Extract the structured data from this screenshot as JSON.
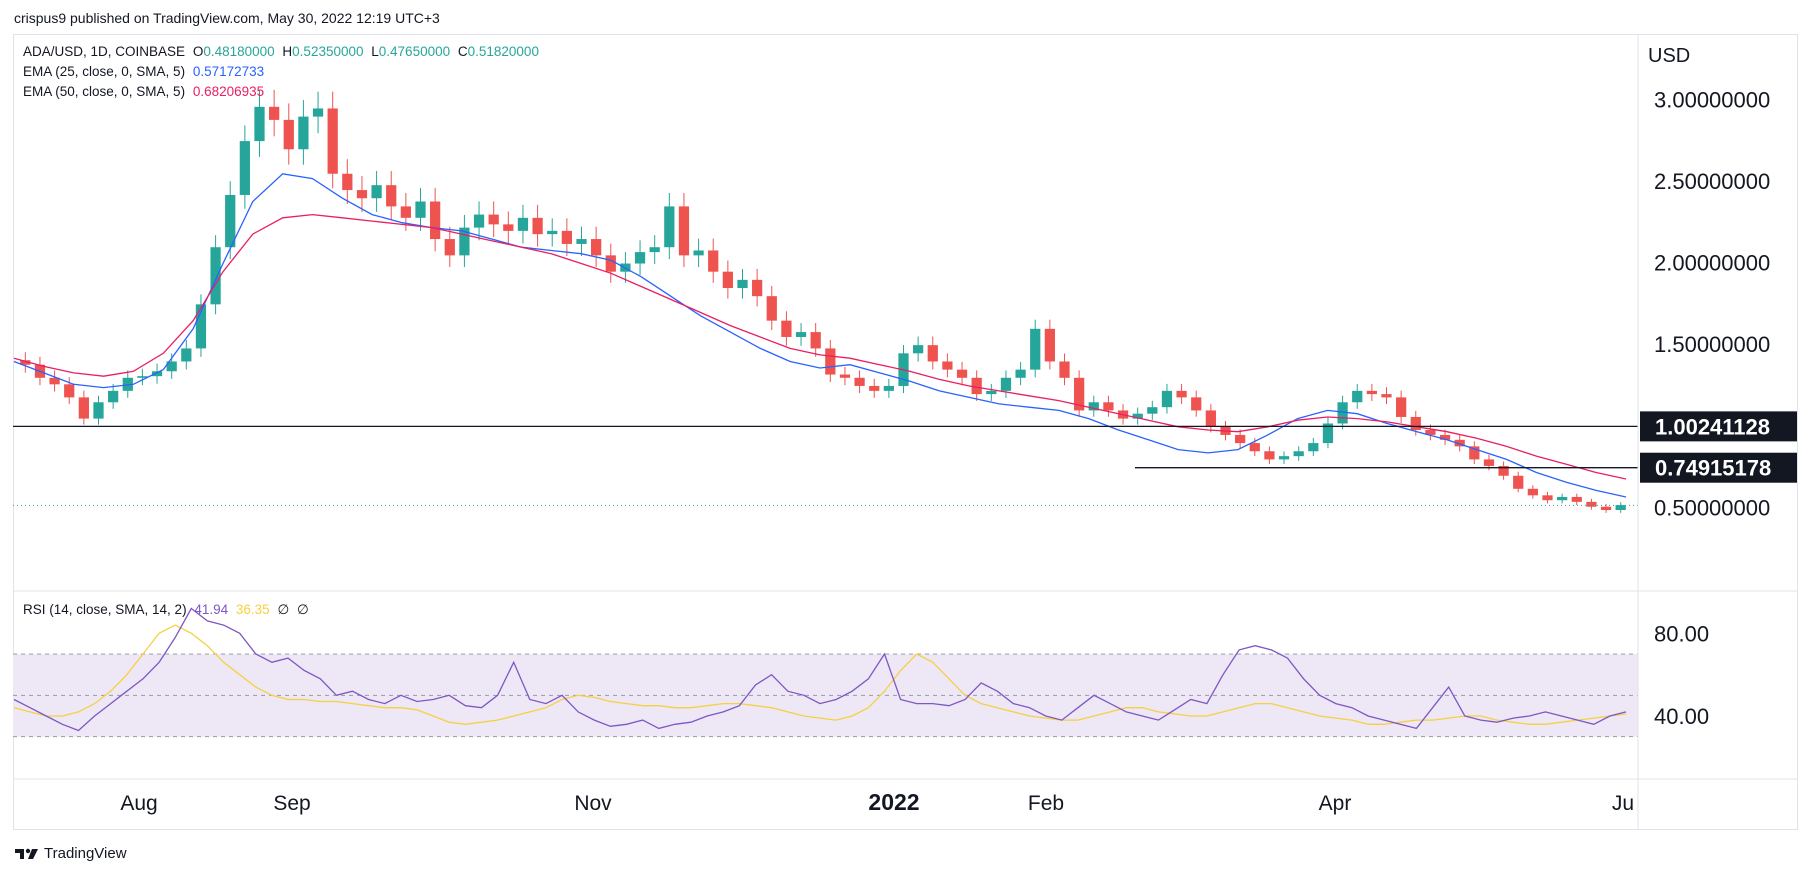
{
  "header": {
    "text": "crispus9 published on TradingView.com, May 30, 2022 12:19 UTC+3"
  },
  "legend": {
    "symbol": "ADA/USD, 1D, COINBASE",
    "o_label": "O",
    "o_value": "0.48180000",
    "h_label": "H",
    "h_value": "0.52350000",
    "l_label": "L",
    "l_value": "0.47650000",
    "c_label": "C",
    "c_value": "0.51820000",
    "ema25_label": "EMA (25, close, 0, SMA, 5)",
    "ema25_value": "0.57172733",
    "ema50_label": "EMA (50, close, 0, SMA, 5)",
    "ema50_value": "0.68206935"
  },
  "rsi_legend": {
    "label": "RSI (14, close, SMA, 14, 2)",
    "rsi_value": "41.94",
    "sma_value": "36.35",
    "n1": "∅",
    "n2": "∅"
  },
  "footer": {
    "brand": "TradingView"
  },
  "colors": {
    "up": "#26a69a",
    "down": "#ef5350",
    "ema25": "#2962ff",
    "ema50": "#e91e63",
    "rsi": "#7e57c2",
    "rsi_sma": "#f5d142",
    "rsi_band": "#ede7f6",
    "last_price": "#26a69a"
  },
  "chart_data": [
    {
      "type": "candlestick",
      "symbol": "ADA/USD",
      "currency_label": "USD",
      "x_labels": [
        "Aug",
        "Sep",
        "Nov",
        "2022",
        "Feb",
        "Apr",
        "Ju"
      ],
      "y_ticks": [
        "3.00000000",
        "2.50000000",
        "2.00000000",
        "1.50000000",
        "0.50000000"
      ],
      "ylim": [
        0.0,
        3.4
      ],
      "horizontal_levels": [
        {
          "label": "1.00241128",
          "value": 1.00241128
        },
        {
          "label": "0.74915178",
          "value": 0.74915178
        }
      ],
      "last_price": 0.5182,
      "series": [
        {
          "name": "ADA/USD",
          "values": [
            1.38,
            1.3,
            1.26,
            1.18,
            1.05,
            1.15,
            1.22,
            1.3,
            1.31,
            1.34,
            1.4,
            1.48,
            1.75,
            2.1,
            2.42,
            2.75,
            2.96,
            2.88,
            2.7,
            2.9,
            2.95,
            2.55,
            2.45,
            2.4,
            2.48,
            2.35,
            2.28,
            2.38,
            2.15,
            2.05,
            2.22,
            2.3,
            2.24,
            2.2,
            2.28,
            2.18,
            2.2,
            2.12,
            2.15,
            2.05,
            1.95,
            2.0,
            2.07,
            2.1,
            2.35,
            2.05,
            2.08,
            1.95,
            1.85,
            1.9,
            1.8,
            1.65,
            1.55,
            1.58,
            1.48,
            1.32,
            1.3,
            1.25,
            1.22,
            1.25,
            1.45,
            1.5,
            1.4,
            1.35,
            1.3,
            1.2,
            1.22,
            1.3,
            1.35,
            1.6,
            1.4,
            1.3,
            1.1,
            1.15,
            1.1,
            1.05,
            1.08,
            1.12,
            1.22,
            1.18,
            1.1,
            1.0,
            0.95,
            0.9,
            0.85,
            0.8,
            0.82,
            0.85,
            0.9,
            1.02,
            1.15,
            1.22,
            1.2,
            1.18,
            1.06,
            0.98,
            0.95,
            0.92,
            0.88,
            0.8,
            0.76,
            0.7,
            0.62,
            0.58,
            0.55,
            0.57,
            0.54,
            0.51,
            0.49,
            0.52
          ]
        },
        {
          "name": "EMA (25, close, 0, SMA, 5)",
          "values": [
            1.4,
            1.33,
            1.26,
            1.24,
            1.26,
            1.35,
            1.6,
            2.0,
            2.38,
            2.55,
            2.52,
            2.4,
            2.3,
            2.25,
            2.22,
            2.2,
            2.15,
            2.1,
            2.08,
            2.06,
            2.02,
            1.92,
            1.8,
            1.68,
            1.58,
            1.48,
            1.4,
            1.36,
            1.38,
            1.33,
            1.28,
            1.22,
            1.18,
            1.14,
            1.12,
            1.1,
            1.05,
            0.98,
            0.92,
            0.86,
            0.84,
            0.86,
            0.95,
            1.05,
            1.1,
            1.08,
            1.02,
            0.97,
            0.92,
            0.86,
            0.8,
            0.72,
            0.66,
            0.61,
            0.57
          ]
        },
        {
          "name": "EMA (50, close, 0, SMA, 5)",
          "values": [
            1.42,
            1.37,
            1.33,
            1.31,
            1.34,
            1.45,
            1.65,
            1.95,
            2.18,
            2.28,
            2.3,
            2.28,
            2.26,
            2.24,
            2.22,
            2.18,
            2.14,
            2.1,
            2.06,
            2.0,
            1.94,
            1.86,
            1.78,
            1.7,
            1.62,
            1.55,
            1.48,
            1.44,
            1.42,
            1.38,
            1.34,
            1.29,
            1.25,
            1.22,
            1.19,
            1.16,
            1.12,
            1.08,
            1.04,
            1.0,
            0.98,
            0.97,
            1.0,
            1.04,
            1.06,
            1.05,
            1.03,
            1.0,
            0.97,
            0.93,
            0.88,
            0.82,
            0.77,
            0.72,
            0.68
          ]
        }
      ]
    },
    {
      "type": "line",
      "title": "RSI (14, close, SMA, 14, 2)",
      "y_ticks": [
        "80.00",
        "40.00"
      ],
      "ylim": [
        10,
        100
      ],
      "band": [
        30,
        70
      ],
      "midline": 50,
      "series": [
        {
          "name": "RSI",
          "values": [
            48,
            44,
            40,
            36,
            33,
            40,
            46,
            52,
            58,
            66,
            78,
            92,
            86,
            84,
            80,
            70,
            66,
            68,
            62,
            58,
            50,
            52,
            48,
            46,
            50,
            47,
            48,
            50,
            45,
            44,
            50,
            66,
            48,
            46,
            50,
            42,
            38,
            35,
            36,
            38,
            34,
            36,
            37,
            40,
            42,
            45,
            55,
            60,
            52,
            50,
            46,
            48,
            52,
            58,
            70,
            48,
            46,
            46,
            45,
            48,
            56,
            52,
            46,
            44,
            40,
            38,
            44,
            50,
            46,
            42,
            40,
            38,
            43,
            48,
            46,
            60,
            72,
            74,
            72,
            68,
            58,
            50,
            46,
            44,
            40,
            38,
            36,
            34,
            44,
            54,
            40,
            38,
            37,
            39,
            40,
            42,
            40,
            38,
            36,
            40,
            42
          ]
        },
        {
          "name": "SMA",
          "values": [
            44,
            42,
            40,
            40,
            42,
            46,
            52,
            60,
            70,
            80,
            84,
            80,
            74,
            66,
            60,
            54,
            50,
            48,
            48,
            47,
            47,
            46,
            45,
            44,
            44,
            43,
            40,
            37,
            36,
            37,
            38,
            40,
            42,
            44,
            48,
            50,
            49,
            47,
            46,
            45,
            45,
            44,
            44,
            45,
            46,
            46,
            45,
            44,
            42,
            40,
            39,
            38,
            40,
            44,
            52,
            62,
            70,
            66,
            58,
            50,
            46,
            44,
            42,
            40,
            39,
            38,
            38,
            40,
            42,
            44,
            44,
            42,
            41,
            40,
            40,
            42,
            44,
            46,
            46,
            44,
            42,
            40,
            39,
            38,
            36,
            36,
            37,
            38,
            38,
            39,
            40,
            40,
            38,
            37,
            36,
            36,
            37,
            38,
            39,
            40,
            41
          ]
        }
      ]
    }
  ]
}
